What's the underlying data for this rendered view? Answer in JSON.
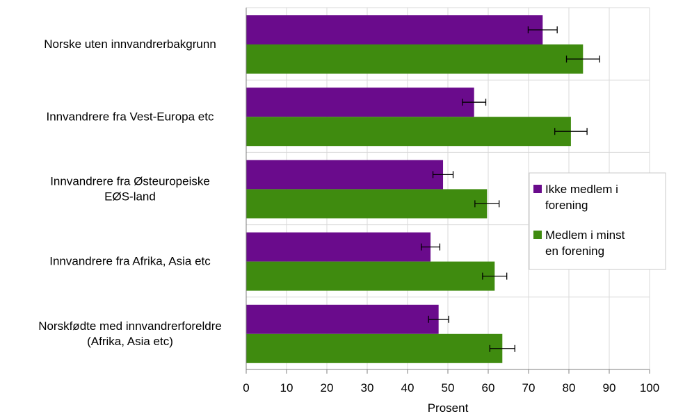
{
  "chart_data": {
    "type": "bar",
    "orientation": "horizontal",
    "xlabel": "Prosent",
    "xlim": [
      0,
      100
    ],
    "xticks": [
      "0",
      "10",
      "20",
      "30",
      "40",
      "50",
      "60",
      "70",
      "80",
      "90",
      "100"
    ],
    "grid": true,
    "legend_position": "right",
    "categories": [
      [
        "Norske uten innvandrerbakgrunn"
      ],
      [
        "Innvandrere fra Vest-Europa etc"
      ],
      [
        "Innvandrere fra Østeuropeiske",
        "EØS-land"
      ],
      [
        "Innvandrere fra Afrika, Asia etc"
      ],
      [
        "Norskfødte med innvandrerforeldre",
        "(Afrika, Asia etc)"
      ]
    ],
    "series": [
      {
        "name": [
          "Ikke medlem i",
          "forening"
        ],
        "color": "#6a0b8c",
        "values": [
          73.5,
          56.5,
          48.8,
          45.7,
          47.7
        ],
        "errors": [
          3.6,
          2.9,
          2.5,
          2.3,
          2.5
        ]
      },
      {
        "name": [
          "Medlem i minst",
          "en forening"
        ],
        "color": "#3f8b0f",
        "values": [
          83.5,
          80.5,
          59.7,
          61.6,
          63.5
        ],
        "errors": [
          4.1,
          4.0,
          3.0,
          3.0,
          3.1
        ]
      }
    ]
  }
}
